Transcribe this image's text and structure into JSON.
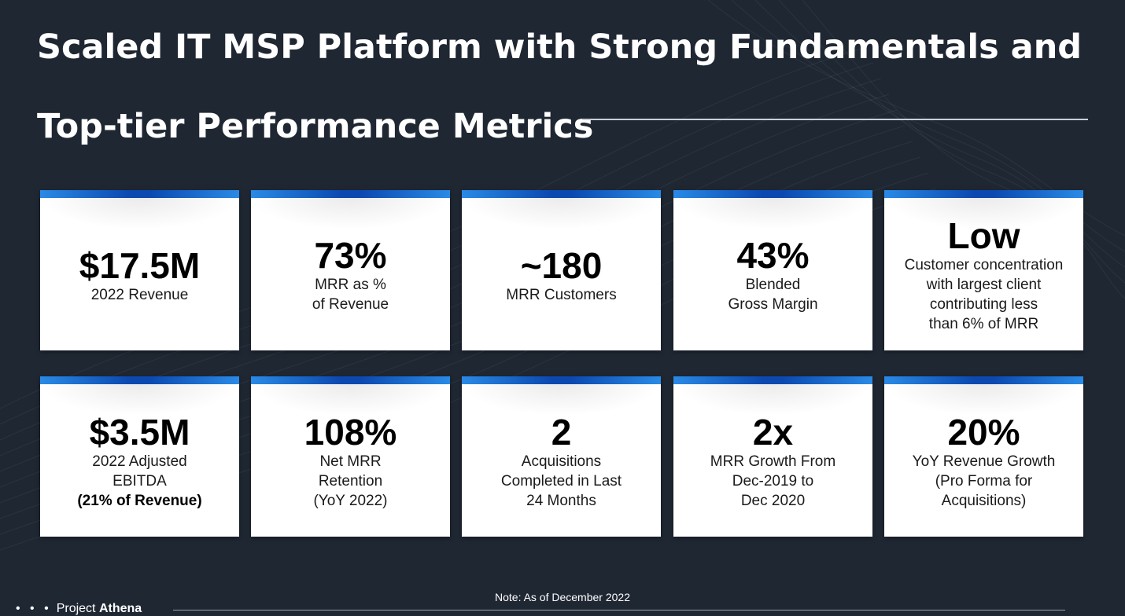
{
  "title": {
    "line1": "Scaled IT MSP Platform with Strong Fundamentals and",
    "line2": "Top-tier Performance Metrics"
  },
  "cards": [
    {
      "metric": "$17.5M",
      "desc": "2022 Revenue"
    },
    {
      "metric": "73%",
      "desc": "MRR as %\nof Revenue"
    },
    {
      "metric": "~180",
      "desc": "MRR Customers"
    },
    {
      "metric": "43%",
      "desc": "Blended\nGross Margin"
    },
    {
      "metric": "Low",
      "desc": "Customer concentration\nwith largest client\ncontributing less\nthan 6% of MRR"
    },
    {
      "metric": "$3.5M",
      "desc": "2022 Adjusted\nEBITDA",
      "desc_bold": "(21% of Revenue)"
    },
    {
      "metric": "108%",
      "desc": "Net MRR\nRetention\n(YoY 2022)"
    },
    {
      "metric": "2",
      "desc": "Acquisitions\nCompleted in Last\n24 Months"
    },
    {
      "metric": "2x",
      "desc": "MRR Growth From\nDec-2019 to\nDec 2020"
    },
    {
      "metric": "20%",
      "desc": "YoY Revenue Growth\n(Pro Forma for\nAcquisitions)"
    }
  ],
  "note": "Note: As of December 2022",
  "footer": {
    "dots": "• • •",
    "project_label": "Project",
    "project_name": "Athena"
  }
}
